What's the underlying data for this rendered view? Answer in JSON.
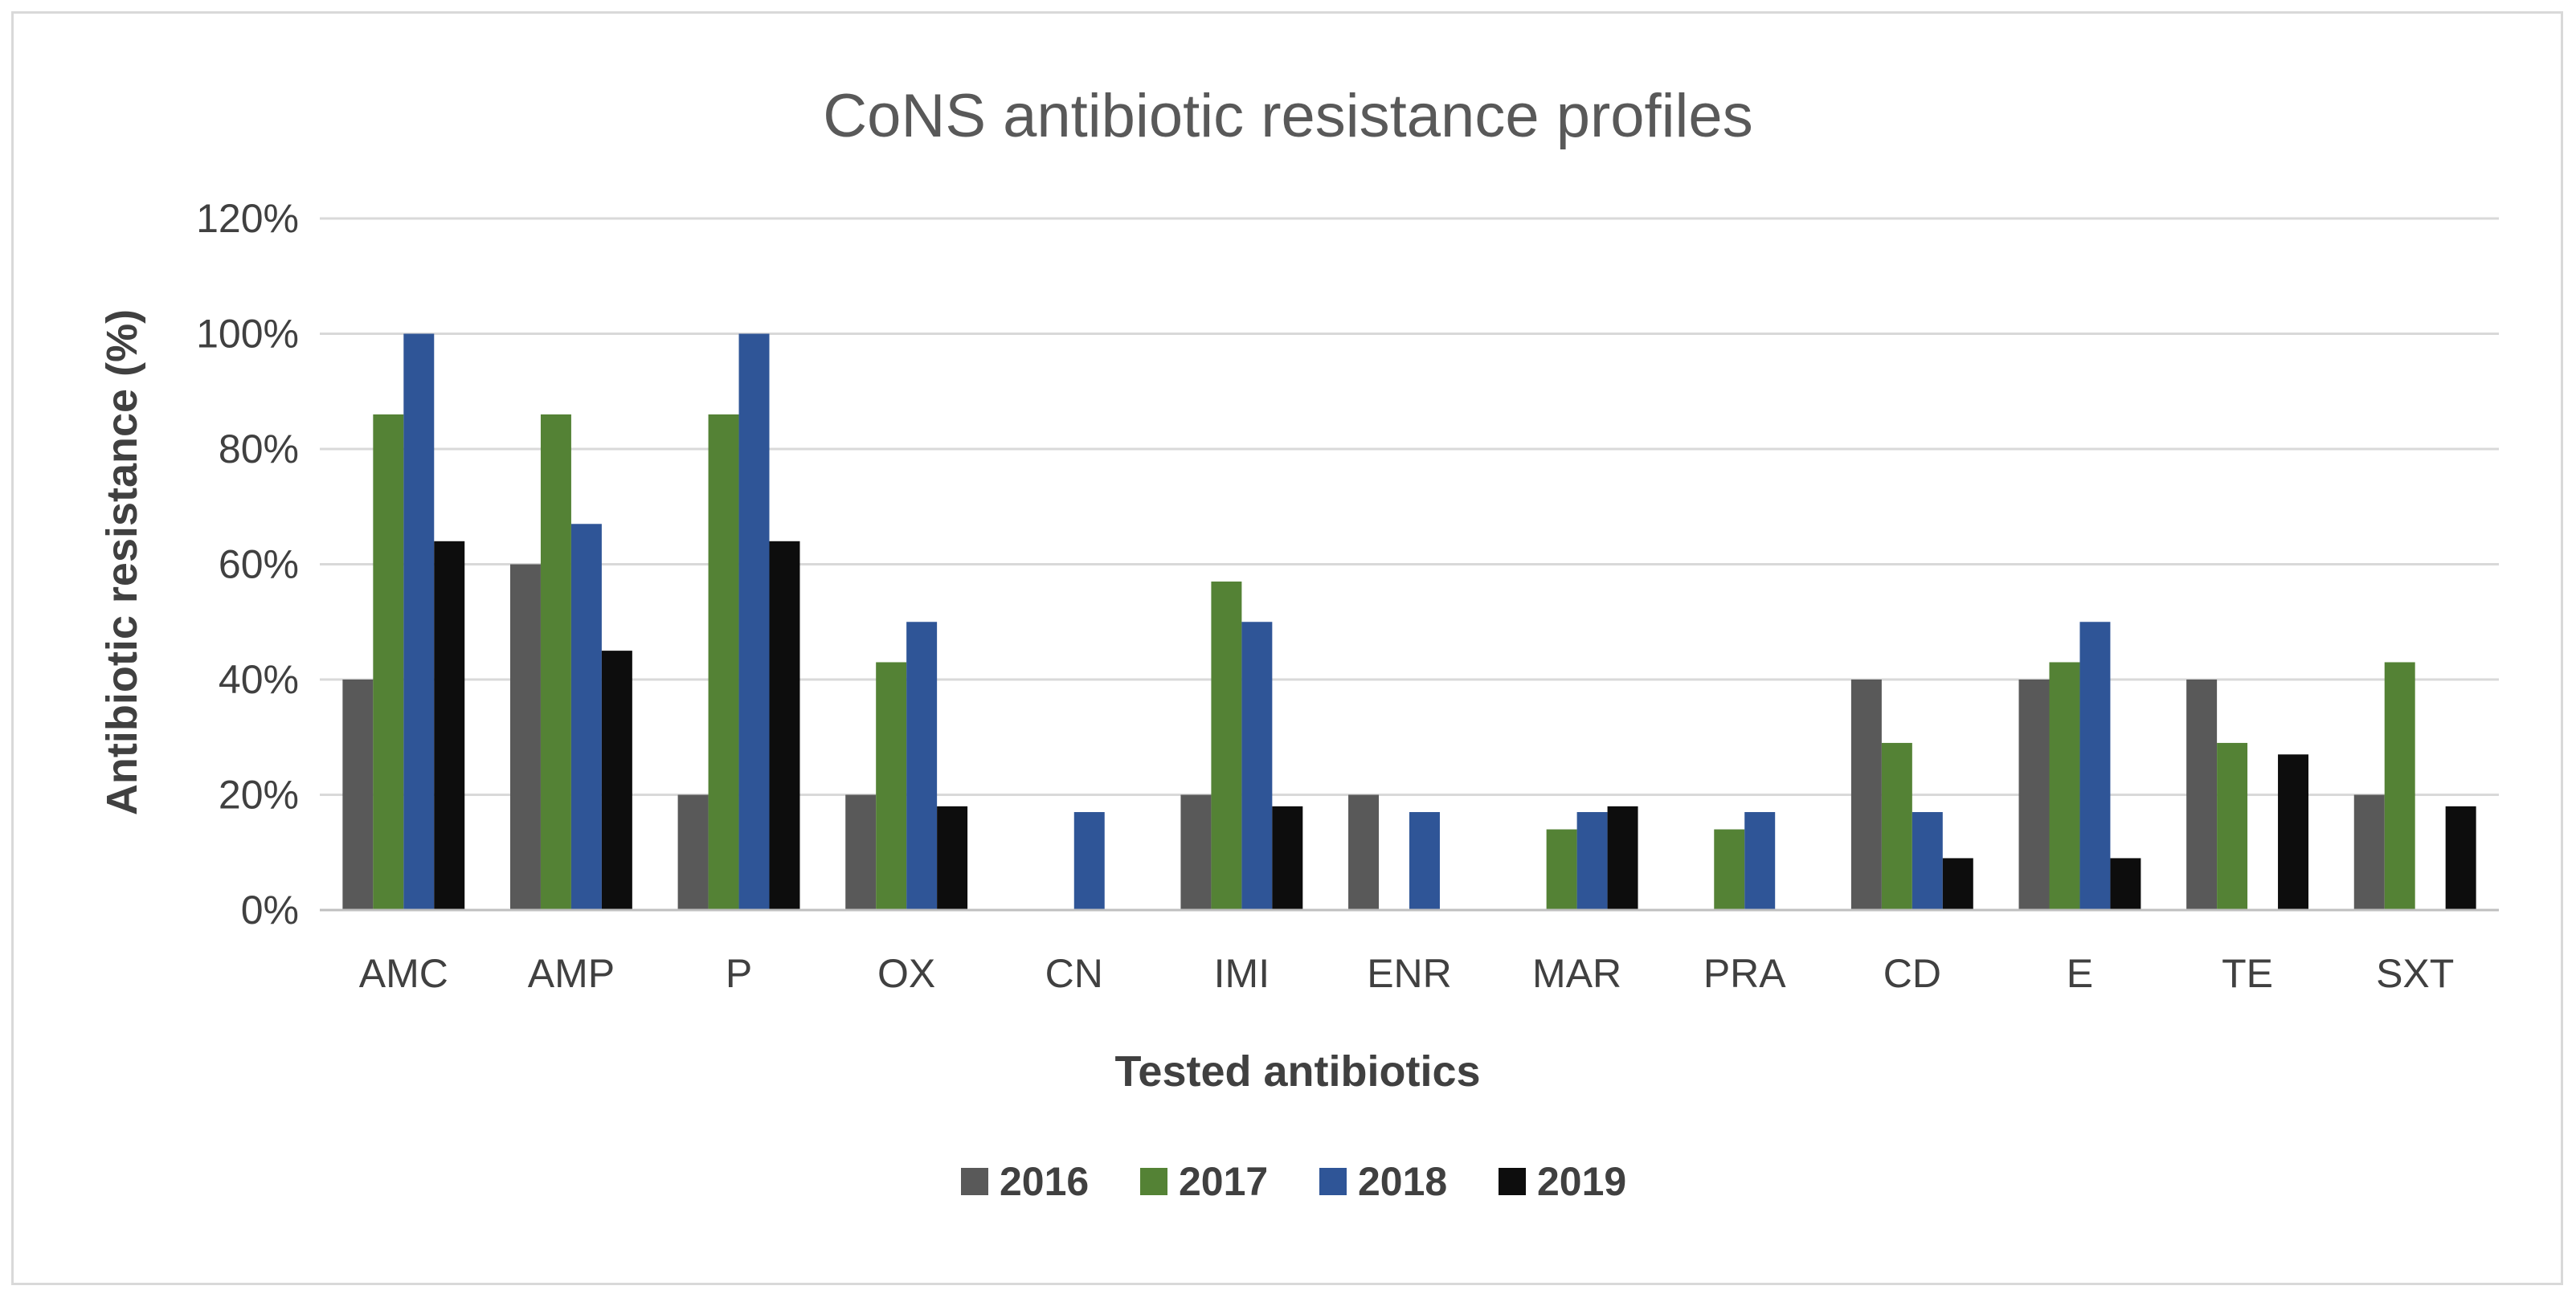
{
  "chart_data": {
    "type": "bar",
    "title": "CoNS antibiotic resistance profiles",
    "xlabel": "Tested antibiotics",
    "ylabel": "Antibiotic resistance (%)",
    "ylim": [
      0,
      120
    ],
    "yticks": [
      "0%",
      "20%",
      "40%",
      "60%",
      "80%",
      "100%",
      "120%"
    ],
    "grid": true,
    "legend_position": "bottom",
    "categories": [
      "AMC",
      "AMP",
      "P",
      "OX",
      "CN",
      "IMI",
      "ENR",
      "MAR",
      "PRA",
      "CD",
      "E",
      "TE",
      "SXT"
    ],
    "series": [
      {
        "name": "2016",
        "color": "#595959",
        "values": [
          40,
          60,
          20,
          20,
          0,
          20,
          20,
          0,
          0,
          40,
          40,
          40,
          20
        ]
      },
      {
        "name": "2017",
        "color": "#548235",
        "values": [
          86,
          86,
          86,
          43,
          0,
          57,
          0,
          14,
          14,
          29,
          43,
          29,
          43
        ]
      },
      {
        "name": "2018",
        "color": "#2f5597",
        "values": [
          100,
          67,
          100,
          50,
          17,
          50,
          17,
          17,
          17,
          17,
          50,
          0,
          0
        ]
      },
      {
        "name": "2019",
        "color": "#0d0d0d",
        "values": [
          64,
          45,
          64,
          18,
          0,
          18,
          0,
          18,
          0,
          9,
          9,
          27,
          18
        ]
      }
    ]
  }
}
